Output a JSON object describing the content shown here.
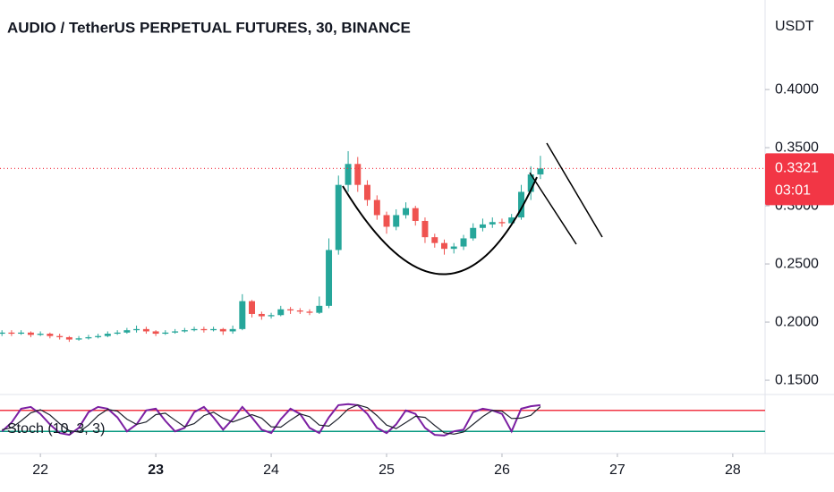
{
  "chart_data": [
    {
      "type": "candlestick",
      "title": "AUDIO / TetherUS PERPETUAL FUTURES, 30, BINANCE",
      "y_axis_label": "USDT",
      "x": [
        21.667,
        21.75,
        21.833,
        21.917,
        22.0,
        22.083,
        22.167,
        22.25,
        22.333,
        22.417,
        22.5,
        22.583,
        22.667,
        22.75,
        22.833,
        22.917,
        23.0,
        23.083,
        23.167,
        23.25,
        23.333,
        23.417,
        23.5,
        23.583,
        23.667,
        23.75,
        23.833,
        23.917,
        24.0,
        24.083,
        24.167,
        24.25,
        24.333,
        24.417,
        24.5,
        24.583,
        24.667,
        24.75,
        24.833,
        24.917,
        25.0,
        25.083,
        25.167,
        25.25,
        25.333,
        25.417,
        25.5,
        25.583,
        25.667,
        25.75,
        25.833,
        25.917,
        26.0,
        26.083,
        26.167,
        26.25,
        26.333
      ],
      "open": [
        0.19,
        0.191,
        0.19,
        0.191,
        0.189,
        0.19,
        0.188,
        0.187,
        0.185,
        0.186,
        0.187,
        0.188,
        0.19,
        0.191,
        0.193,
        0.194,
        0.192,
        0.19,
        0.191,
        0.192,
        0.193,
        0.194,
        0.193,
        0.194,
        0.192,
        0.194,
        0.218,
        0.207,
        0.205,
        0.206,
        0.211,
        0.21,
        0.209,
        0.208,
        0.214,
        0.262,
        0.318,
        0.336,
        0.318,
        0.305,
        0.292,
        0.282,
        0.292,
        0.298,
        0.287,
        0.273,
        0.268,
        0.263,
        0.265,
        0.272,
        0.281,
        0.284,
        0.286,
        0.285,
        0.29,
        0.312,
        0.327
      ],
      "high": [
        0.193,
        0.193,
        0.193,
        0.192,
        0.192,
        0.191,
        0.19,
        0.188,
        0.188,
        0.189,
        0.19,
        0.192,
        0.193,
        0.195,
        0.197,
        0.196,
        0.193,
        0.193,
        0.194,
        0.195,
        0.196,
        0.196,
        0.196,
        0.195,
        0.197,
        0.224,
        0.219,
        0.209,
        0.208,
        0.214,
        0.213,
        0.212,
        0.211,
        0.222,
        0.272,
        0.326,
        0.347,
        0.342,
        0.322,
        0.309,
        0.295,
        0.297,
        0.303,
        0.3,
        0.29,
        0.276,
        0.271,
        0.268,
        0.275,
        0.285,
        0.289,
        0.29,
        0.289,
        0.293,
        0.318,
        0.334,
        0.343
      ],
      "low": [
        0.188,
        0.188,
        0.189,
        0.187,
        0.188,
        0.186,
        0.185,
        0.183,
        0.184,
        0.185,
        0.186,
        0.187,
        0.189,
        0.19,
        0.191,
        0.19,
        0.188,
        0.189,
        0.19,
        0.191,
        0.192,
        0.191,
        0.192,
        0.189,
        0.19,
        0.193,
        0.204,
        0.202,
        0.203,
        0.205,
        0.207,
        0.207,
        0.206,
        0.207,
        0.212,
        0.258,
        0.312,
        0.312,
        0.3,
        0.288,
        0.276,
        0.279,
        0.289,
        0.283,
        0.268,
        0.264,
        0.258,
        0.259,
        0.262,
        0.27,
        0.278,
        0.281,
        0.282,
        0.283,
        0.288,
        0.305,
        0.323
      ],
      "close": [
        0.191,
        0.19,
        0.191,
        0.189,
        0.19,
        0.188,
        0.187,
        0.185,
        0.186,
        0.187,
        0.188,
        0.19,
        0.191,
        0.193,
        0.194,
        0.192,
        0.19,
        0.191,
        0.192,
        0.193,
        0.194,
        0.193,
        0.194,
        0.192,
        0.194,
        0.218,
        0.207,
        0.205,
        0.206,
        0.211,
        0.21,
        0.209,
        0.208,
        0.214,
        0.262,
        0.318,
        0.336,
        0.318,
        0.305,
        0.292,
        0.282,
        0.292,
        0.298,
        0.287,
        0.273,
        0.268,
        0.263,
        0.265,
        0.272,
        0.281,
        0.284,
        0.286,
        0.285,
        0.29,
        0.312,
        0.327,
        0.3321
      ],
      "up_color": "#26a69a",
      "down_color": "#ef5350",
      "last_price": 0.3321,
      "last_price_color": "#f23645",
      "countdown": "03:01",
      "xlim": [
        21.65,
        28.28
      ],
      "xticks": [
        22,
        23,
        24,
        25,
        26,
        27,
        28
      ],
      "ylim": [
        0.1385,
        0.477
      ],
      "yticks": [
        {
          "value": 0.15,
          "label": "0.1500"
        },
        {
          "value": 0.2,
          "label": "0.2000"
        },
        {
          "value": 0.25,
          "label": "0.2500"
        },
        {
          "value": 0.3,
          "label": "0.3000"
        },
        {
          "value": 0.35,
          "label": "0.3500"
        },
        {
          "value": 0.4,
          "label": "0.4000"
        }
      ]
    },
    {
      "type": "stoch",
      "label": "Stoch (10, 3, 3)",
      "ylim": [
        0,
        100
      ],
      "upper_band": 80,
      "upper_color": "#f23645",
      "lower_band": 20,
      "lower_color": "#089981",
      "series": [
        {
          "color": "#7b1fa2",
          "values": [
            20,
            45,
            85,
            90,
            70,
            40,
            15,
            10,
            30,
            75,
            90,
            85,
            60,
            20,
            40,
            80,
            85,
            50,
            20,
            30,
            75,
            90,
            60,
            25,
            55,
            90,
            60,
            25,
            15,
            55,
            85,
            70,
            30,
            15,
            60,
            95,
            98,
            95,
            70,
            30,
            15,
            40,
            80,
            70,
            30,
            10,
            8,
            20,
            25,
            75,
            85,
            80,
            70,
            20,
            85,
            92,
            95
          ]
        },
        {
          "color": "#1e222d",
          "values": [
            25,
            30,
            50,
            73,
            82,
            67,
            42,
            22,
            18,
            38,
            65,
            83,
            78,
            55,
            40,
            47,
            68,
            72,
            52,
            33,
            42,
            65,
            75,
            58,
            47,
            57,
            68,
            58,
            33,
            32,
            52,
            70,
            62,
            38,
            35,
            57,
            84,
            96,
            88,
            65,
            38,
            28,
            45,
            63,
            60,
            37,
            16,
            12,
            18,
            40,
            62,
            80,
            78,
            57,
            58,
            66,
            91
          ]
        }
      ]
    }
  ]
}
